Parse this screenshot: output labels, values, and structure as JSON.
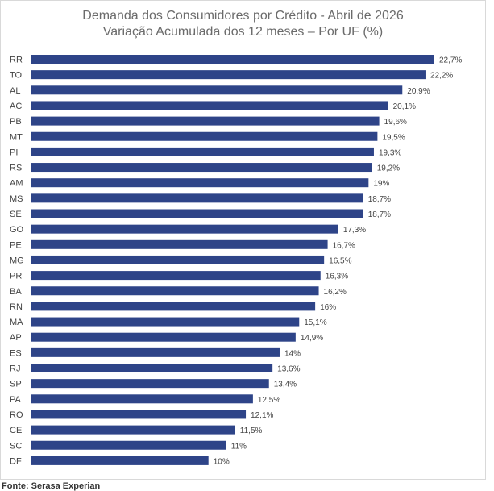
{
  "chart_data": {
    "type": "bar",
    "orientation": "horizontal",
    "title": "Demanda dos Consumidores por Crédito - Abril de 2026",
    "subtitle": "Variação Acumulada dos 12 meses – Por UF (%)",
    "categories": [
      "RR",
      "TO",
      "AL",
      "AC",
      "PB",
      "MT",
      "PI",
      "RS",
      "AM",
      "MS",
      "SE",
      "GO",
      "PE",
      "MG",
      "PR",
      "BA",
      "RN",
      "MA",
      "AP",
      "ES",
      "RJ",
      "SP",
      "PA",
      "RO",
      "CE",
      "SC",
      "DF"
    ],
    "values": [
      22.7,
      22.2,
      20.9,
      20.1,
      19.6,
      19.5,
      19.3,
      19.2,
      19,
      18.7,
      18.7,
      17.3,
      16.7,
      16.5,
      16.3,
      16.2,
      16,
      15.1,
      14.9,
      14,
      13.6,
      13.4,
      12.5,
      12.1,
      11.5,
      11,
      10
    ],
    "data_labels": [
      "22,7%",
      "22,2%",
      "20,9%",
      "20,1%",
      "19,6%",
      "19,5%",
      "19,3%",
      "19,2%",
      "19%",
      "18,7%",
      "18,7%",
      "17,3%",
      "16,7%",
      "16,5%",
      "16,3%",
      "16,2%",
      "16%",
      "15,1%",
      "14,9%",
      "14%",
      "13,6%",
      "13,4%",
      "12,5%",
      "12,1%",
      "11,5%",
      "11%",
      "10%"
    ],
    "xlim": [
      0,
      22.7
    ],
    "grid": false,
    "legend": "none",
    "bar_color": "#2e4488"
  },
  "source": "Fonte: Serasa Experian"
}
